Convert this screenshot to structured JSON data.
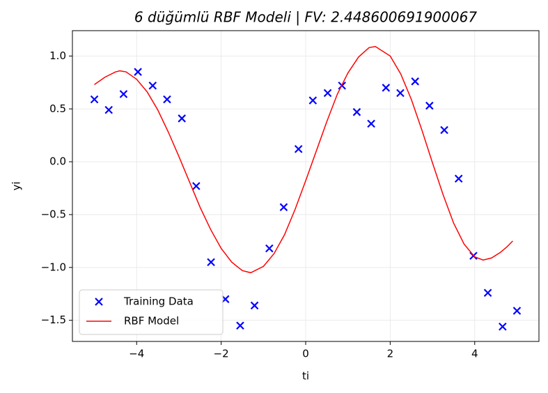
{
  "chart_data": {
    "type": "scatter-line",
    "title": "6 düğümlü RBF Modeli | FV: 2.448600691900067",
    "x_label": "ti",
    "y_label": "yi",
    "xlim": [
      -5.52,
      5.52
    ],
    "ylim": [
      -1.7,
      1.24
    ],
    "xticks": [
      {
        "value": -4,
        "label": "−4"
      },
      {
        "value": -2,
        "label": "−2"
      },
      0,
      2,
      4
    ],
    "yticks": [
      {
        "value": -1.5,
        "label": "−1.5"
      },
      {
        "value": -1.0,
        "label": "−1.0"
      },
      {
        "value": -0.5,
        "label": "−0.5"
      },
      {
        "value": 0,
        "label": "0.0"
      },
      0.5,
      {
        "value": 1.0,
        "label": "1.0"
      }
    ],
    "grid": true,
    "legend": "lower left",
    "series": [
      {
        "name": "Training Data",
        "color": "#0000ff",
        "kind": "scatter",
        "x": [
          -5,
          -4.66,
          -4.31,
          -3.97,
          -3.62,
          -3.28,
          -2.93,
          -2.59,
          -2.24,
          -1.9,
          -1.55,
          -1.21,
          -0.86,
          -0.52,
          -0.17,
          0.17,
          0.52,
          0.86,
          1.21,
          1.55,
          1.9,
          2.24,
          2.59,
          2.93,
          3.28,
          3.62,
          3.97,
          4.31,
          4.66,
          5.0
        ],
        "values": [
          0.59,
          0.49,
          0.64,
          0.85,
          0.72,
          0.59,
          0.41,
          -0.23,
          -0.95,
          -1.3,
          -1.55,
          -1.36,
          -0.82,
          -0.43,
          0.12,
          0.58,
          0.65,
          0.72,
          0.47,
          0.36,
          0.7,
          0.65,
          0.76,
          0.53,
          0.3,
          -0.16,
          -0.89,
          -1.24,
          -1.56,
          -1.41
        ]
      },
      {
        "name": "RBF Model",
        "color": "#ff0000",
        "kind": "line",
        "x": [
          -5,
          -4.75,
          -4.5,
          -4.4,
          -4.25,
          -4.0,
          -3.75,
          -3.5,
          -3.25,
          -3.0,
          -2.75,
          -2.5,
          -2.25,
          -2.0,
          -1.75,
          -1.5,
          -1.3,
          -1.0,
          -0.75,
          -0.5,
          -0.25,
          0,
          0.25,
          0.5,
          0.75,
          1.0,
          1.25,
          1.5,
          1.65,
          2.0,
          2.25,
          2.5,
          2.75,
          3.0,
          3.25,
          3.5,
          3.75,
          4.0,
          4.2,
          4.4,
          4.6,
          4.75,
          4.9
        ],
        "values": [
          0.73,
          0.8,
          0.85,
          0.86,
          0.85,
          0.78,
          0.66,
          0.49,
          0.28,
          0.05,
          -0.19,
          -0.43,
          -0.64,
          -0.82,
          -0.95,
          -1.03,
          -1.05,
          -0.99,
          -0.87,
          -0.69,
          -0.45,
          -0.18,
          0.1,
          0.38,
          0.64,
          0.84,
          0.99,
          1.08,
          1.09,
          1.0,
          0.83,
          0.59,
          0.3,
          -0.01,
          -0.31,
          -0.58,
          -0.78,
          -0.9,
          -0.93,
          -0.91,
          -0.86,
          -0.81,
          -0.75
        ]
      }
    ]
  }
}
